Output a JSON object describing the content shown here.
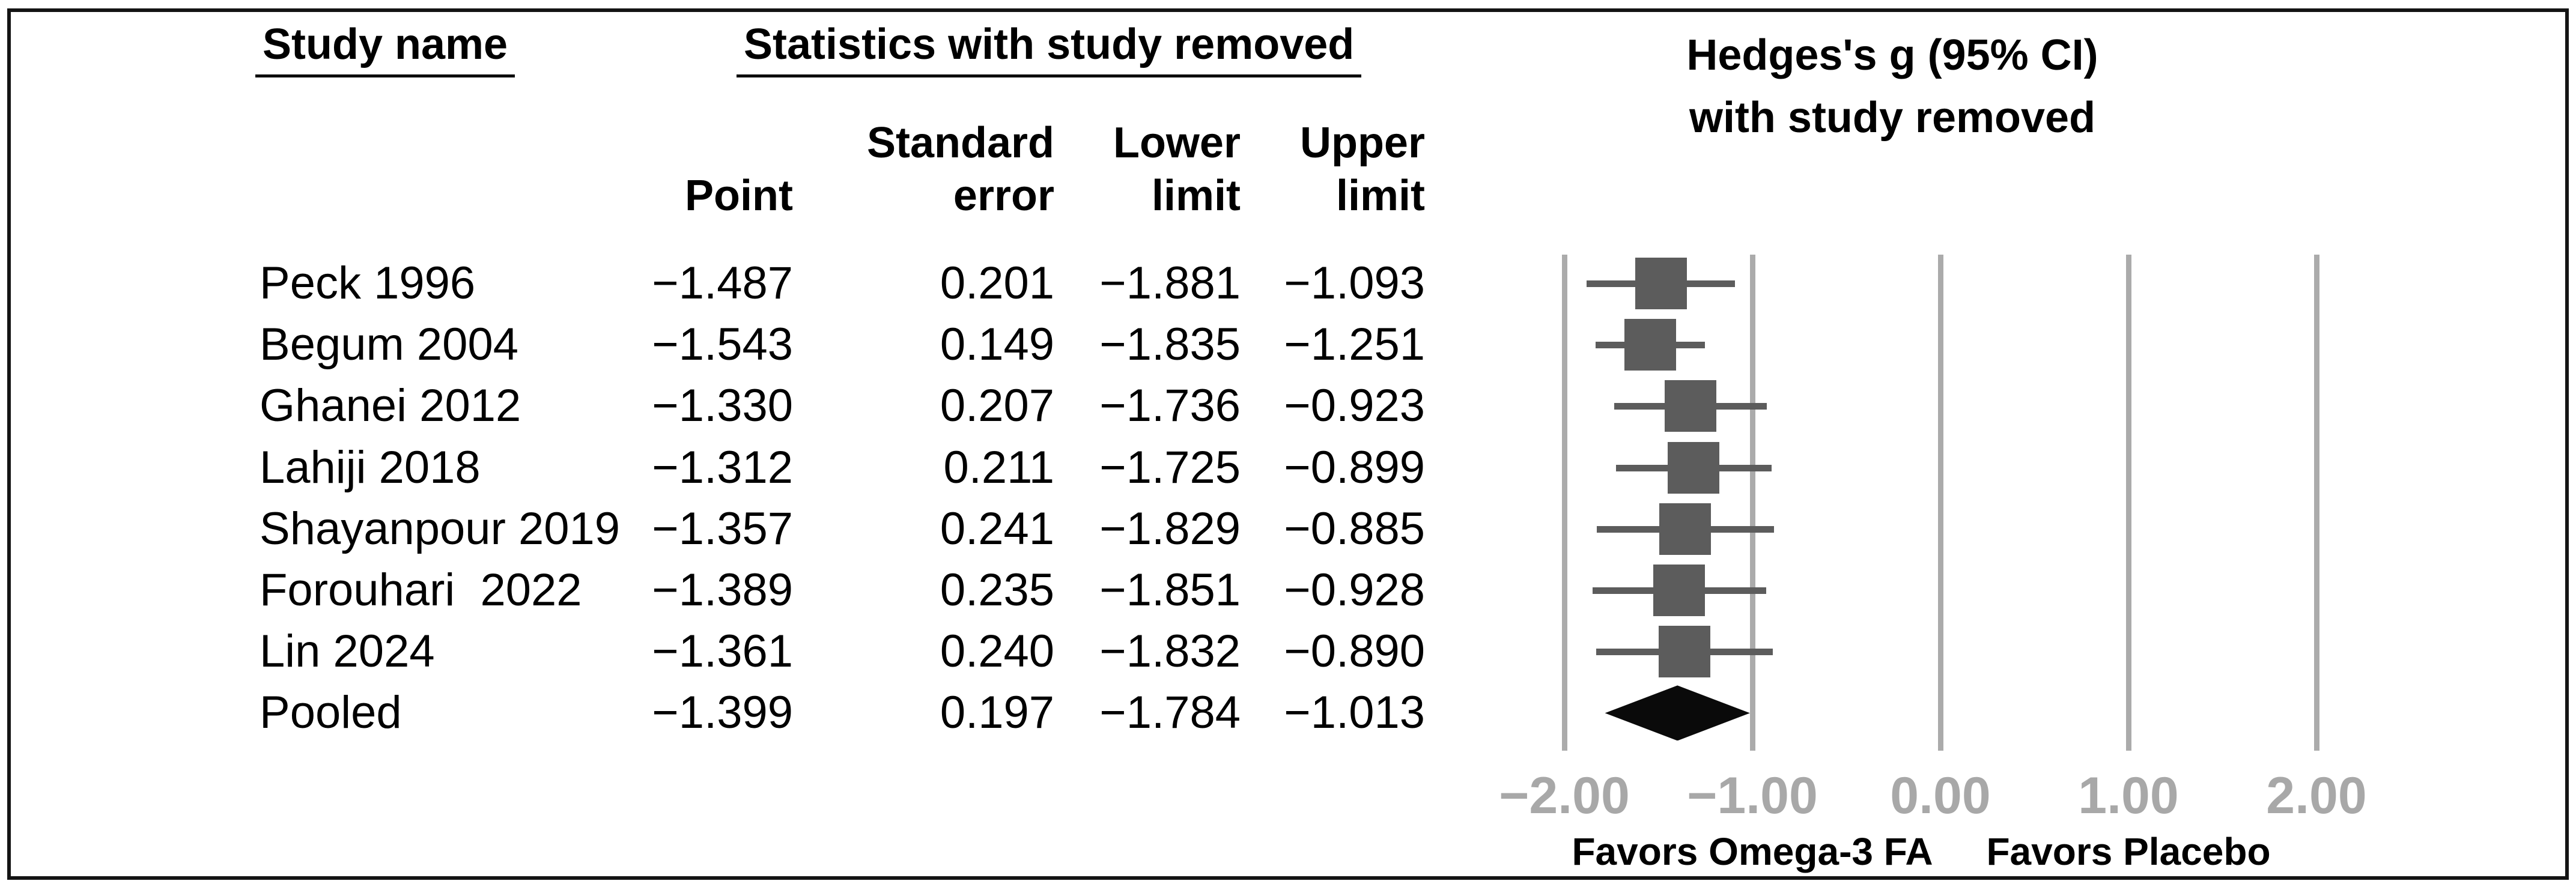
{
  "figure": {
    "left_header": "Study name",
    "stats_header": "Statistics with study removed",
    "columns": {
      "point_line2": "Point",
      "se_line1": "Standard",
      "se_line2": "error",
      "lower_line1": "Lower",
      "lower_line2": "limit",
      "upper_line1": "Upper",
      "upper_line2": "limit"
    },
    "plot_title_line1": "Hedges's g (95% CI)",
    "plot_title_line2": "with study removed",
    "favors_left": "Favors Omega-3 FA",
    "favors_right": "Favors Placebo"
  },
  "chart_data": {
    "type": "forest",
    "title": "Hedges's g (95% CI) with study removed",
    "effect_measure": "Hedges's g",
    "xlim": [
      -2,
      2
    ],
    "x_ticks": [
      {
        "value": -2,
        "label": "−2.00"
      },
      {
        "value": -1,
        "label": "−1.00"
      },
      {
        "value": 0,
        "label": "0.00"
      },
      {
        "value": 1,
        "label": "1.00"
      },
      {
        "value": 2,
        "label": "2.00"
      }
    ],
    "grid": true,
    "favors_left_label": "Favors Omega-3 FA",
    "favors_right_label": "Favors Placebo",
    "studies": [
      {
        "name": "Peck 1996",
        "point": "−1.487",
        "se": "0.201",
        "lower": "−1.881",
        "upper": "−1.093",
        "pooled": false
      },
      {
        "name": "Begum 2004",
        "point": "−1.543",
        "se": "0.149",
        "lower": "−1.835",
        "upper": "−1.251",
        "pooled": false
      },
      {
        "name": "Ghanei 2012",
        "point": "−1.330",
        "se": "0.207",
        "lower": "−1.736",
        "upper": "−0.923",
        "pooled": false
      },
      {
        "name": "Lahiji 2018",
        "point": "−1.312",
        "se": "0.211",
        "lower": "−1.725",
        "upper": "−0.899",
        "pooled": false
      },
      {
        "name": "Shayanpour 2019",
        "point": "−1.357",
        "se": "0.241",
        "lower": "−1.829",
        "upper": "−0.885",
        "pooled": false
      },
      {
        "name": "Forouhari  2022",
        "point": "−1.389",
        "se": "0.235",
        "lower": "−1.851",
        "upper": "−0.928",
        "pooled": false
      },
      {
        "name": "Lin 2024",
        "point": "−1.361",
        "se": "0.240",
        "lower": "−1.832",
        "upper": "−0.890",
        "pooled": false
      },
      {
        "name": "Pooled",
        "point": "−1.399",
        "se": "0.197",
        "lower": "−1.784",
        "upper": "−1.013",
        "pooled": true
      }
    ]
  },
  "colors": {
    "square": "#5c5c5c",
    "whisker": "#5c5c5c",
    "diamond": "#0a0a0a",
    "gridline": "#ababab",
    "tick_text": "#a8a8a8",
    "frame": "#141414"
  }
}
